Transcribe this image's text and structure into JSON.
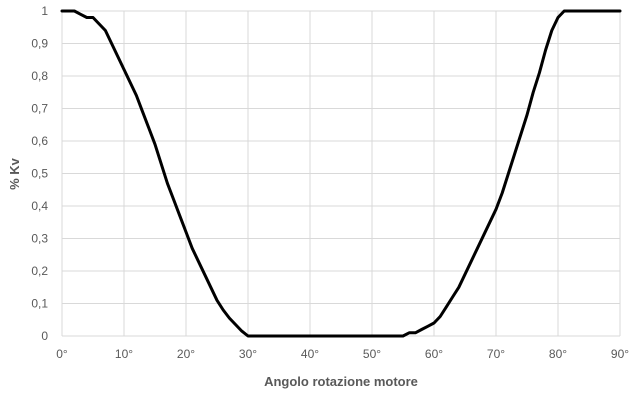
{
  "chart_data": {
    "type": "line",
    "title": "",
    "xlabel": "Angolo rotazione motore",
    "ylabel": "% Kv",
    "xlim": [
      0,
      90
    ],
    "ylim": [
      0,
      1
    ],
    "grid": true,
    "legend": "none",
    "x_tick_labels": [
      "0°",
      "10°",
      "20°",
      "30°",
      "40°",
      "50°",
      "60°",
      "70°",
      "80°",
      "90°"
    ],
    "y_tick_labels": [
      "0",
      "0,1",
      "0,2",
      "0,3",
      "0,4",
      "0,5",
      "0,6",
      "0,7",
      "0,8",
      "0,9",
      "1"
    ],
    "series": [
      {
        "color": "#000000",
        "x": [
          0,
          2,
          3,
          4,
          5,
          6,
          7,
          8,
          9,
          10,
          11,
          12,
          13,
          14,
          15,
          16,
          17,
          18,
          19,
          20,
          21,
          22,
          23,
          24,
          25,
          26,
          27,
          28,
          29,
          30,
          31,
          32,
          33,
          34,
          40,
          50,
          55,
          56,
          57,
          58,
          59,
          60,
          61,
          62,
          63,
          64,
          65,
          66,
          67,
          68,
          69,
          70,
          71,
          72,
          73,
          74,
          75,
          76,
          77,
          78,
          79,
          80,
          81,
          82,
          83,
          84,
          85,
          86,
          90
        ],
        "y": [
          1.0,
          1.0,
          0.99,
          0.98,
          0.98,
          0.96,
          0.94,
          0.9,
          0.86,
          0.82,
          0.78,
          0.74,
          0.69,
          0.64,
          0.59,
          0.53,
          0.47,
          0.42,
          0.37,
          0.32,
          0.27,
          0.23,
          0.19,
          0.15,
          0.11,
          0.08,
          0.055,
          0.035,
          0.015,
          0.0,
          0.0,
          0.0,
          0.0,
          0.0,
          0.0,
          0.0,
          0.0,
          0.01,
          0.01,
          0.02,
          0.03,
          0.04,
          0.06,
          0.09,
          0.12,
          0.15,
          0.19,
          0.23,
          0.27,
          0.31,
          0.35,
          0.39,
          0.44,
          0.5,
          0.56,
          0.62,
          0.68,
          0.75,
          0.81,
          0.88,
          0.94,
          0.98,
          1.0,
          1.0,
          1.0,
          1.0,
          1.0,
          1.0,
          1.0
        ]
      }
    ]
  }
}
